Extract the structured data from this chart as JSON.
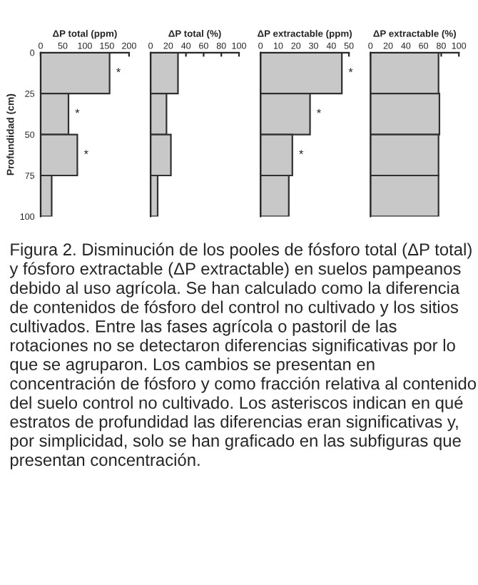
{
  "chart_data": [
    {
      "type": "bar",
      "orientation": "horizontal",
      "title": "ΔP total (ppm)",
      "ylabel": "Profundidad (cm)",
      "x": [
        12.5,
        37.5,
        62.5,
        87.5
      ],
      "ylim": [
        100,
        0
      ],
      "yticks": [
        0,
        25,
        50,
        75,
        100
      ],
      "xlim": [
        0,
        200
      ],
      "xticks": [
        0,
        50,
        100,
        150,
        200
      ],
      "values": [
        156,
        63,
        83,
        25
      ],
      "color": "#c8c8c8",
      "annotations": [
        "*",
        "*",
        "*"
      ]
    },
    {
      "type": "bar",
      "orientation": "horizontal",
      "title": "ΔP total (%)",
      "x": [
        12.5,
        37.5,
        62.5,
        87.5
      ],
      "ylim": [
        100,
        0
      ],
      "xlim": [
        0,
        100
      ],
      "xticks": [
        0,
        20,
        40,
        60,
        80,
        100
      ],
      "tick_labels": "x",
      "values": [
        31,
        18,
        23,
        8
      ],
      "color": "#c8c8c8"
    },
    {
      "type": "bar",
      "orientation": "horizontal",
      "title": "ΔP extractable (ppm)",
      "x": [
        12.5,
        37.5,
        62.5,
        87.5
      ],
      "ylim": [
        100,
        0
      ],
      "xlim": [
        0,
        50
      ],
      "xticks": [
        0,
        10,
        20,
        30,
        40,
        50
      ],
      "tick_labels": "x",
      "values": [
        46,
        28,
        18,
        16
      ],
      "color": "#c8c8c8",
      "annotations": [
        "*",
        "*",
        "*"
      ]
    },
    {
      "type": "bar",
      "orientation": "horizontal",
      "title": "ΔP extractable (%)",
      "x": [
        12.5,
        37.5,
        62.5,
        87.5
      ],
      "ylim": [
        100,
        0
      ],
      "xlim": [
        0,
        100
      ],
      "xticks": [
        0,
        20,
        40,
        60,
        80,
        100
      ],
      "tick_labels": "x",
      "values": [
        77,
        78,
        77,
        77
      ],
      "color": "#c8c8c8",
      "annotations": [
        "Figura 2. Disminución de los pooles de fósforo total (ΔP total) y fósforo extractable (ΔP extractable) en suelos pampeanos debido al uso agrícola. Se han calculado como la diferencia de contenidos de fósforo del control no cultivado y los sitios cultivados. Entre las fases agrícola o pastoril de las rotaciones no se detectaron diferencias significativas por lo que se agruparon. Los cambios se presentan en concentración de fósforo y como fracción relativa al contenido del suelo control no cultivado. Los asteriscos indican en qué estratos de profundidad las diferencias eran significativas y, por simplicidad, solo se han graficado en las subfiguras que presentan concentración."
      ]
    }
  ]
}
